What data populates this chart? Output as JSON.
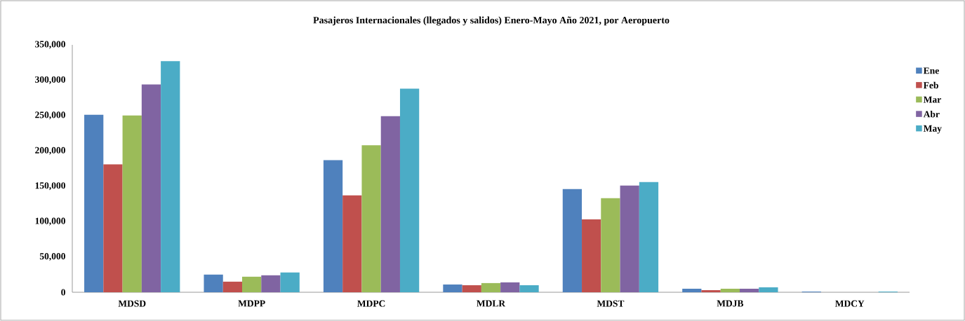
{
  "chart_data": {
    "type": "bar",
    "title": "Pasajeros Internacionales (llegados y salidos) Enero-Mayo Año 2021, por Aeropuerto",
    "categories": [
      "MDSD",
      "MDPP",
      "MDPC",
      "MDLR",
      "MDST",
      "MDJB",
      "MDCY"
    ],
    "series": [
      {
        "name": "Ene",
        "color": "#4f81bd",
        "values": [
          251000,
          25000,
          187000,
          11000,
          146000,
          5000,
          1000
        ]
      },
      {
        "name": "Feb",
        "color": "#c0504d",
        "values": [
          181000,
          15000,
          137000,
          10000,
          103000,
          3000,
          0
        ]
      },
      {
        "name": "Mar",
        "color": "#9bbb59",
        "values": [
          250000,
          22000,
          208000,
          13000,
          133000,
          5000,
          0
        ]
      },
      {
        "name": "Abr",
        "color": "#8064a2",
        "values": [
          294000,
          24000,
          249000,
          14000,
          151000,
          5000,
          0
        ]
      },
      {
        "name": "May",
        "color": "#4bacc6",
        "values": [
          327000,
          28000,
          288000,
          10000,
          156000,
          7000,
          1000
        ]
      }
    ],
    "ylim": [
      0,
      350000
    ],
    "yticks": [
      0,
      {
        "value": 50000,
        "label": "50,000"
      },
      {
        "value": 100000,
        "label": "100,000"
      },
      {
        "value": 150000,
        "label": "150,000"
      },
      {
        "value": 200000,
        "label": "200,000"
      },
      {
        "value": 250000,
        "label": "250,000"
      },
      {
        "value": 300000,
        "label": "300,000"
      },
      {
        "value": 350000,
        "label": "350,000"
      }
    ],
    "legend": "right",
    "grid": false
  }
}
